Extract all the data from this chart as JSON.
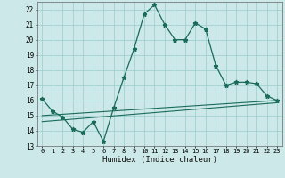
{
  "title": "",
  "xlabel": "Humidex (Indice chaleur)",
  "bg_color": "#cce8e8",
  "grid_color": "#99cccc",
  "line_color": "#1a6b5a",
  "xlim": [
    -0.5,
    23.5
  ],
  "ylim": [
    13,
    22.5
  ],
  "yticks": [
    13,
    14,
    15,
    16,
    17,
    18,
    19,
    20,
    21,
    22
  ],
  "xticks": [
    0,
    1,
    2,
    3,
    4,
    5,
    6,
    7,
    8,
    9,
    10,
    11,
    12,
    13,
    14,
    15,
    16,
    17,
    18,
    19,
    20,
    21,
    22,
    23
  ],
  "main_x": [
    0,
    1,
    2,
    3,
    4,
    5,
    6,
    7,
    8,
    9,
    10,
    11,
    12,
    13,
    14,
    15,
    16,
    17,
    18,
    19,
    20,
    21,
    22,
    23
  ],
  "main_y": [
    16.1,
    15.3,
    14.9,
    14.1,
    13.9,
    14.6,
    13.3,
    15.5,
    17.5,
    19.4,
    21.7,
    22.3,
    21.0,
    20.0,
    20.0,
    21.1,
    20.7,
    18.3,
    17.0,
    17.2,
    17.2,
    17.1,
    16.3,
    16.0
  ],
  "trend1_x": [
    0,
    23
  ],
  "trend1_y": [
    15.0,
    16.0
  ],
  "trend2_x": [
    0,
    23
  ],
  "trend2_y": [
    14.6,
    15.85
  ]
}
